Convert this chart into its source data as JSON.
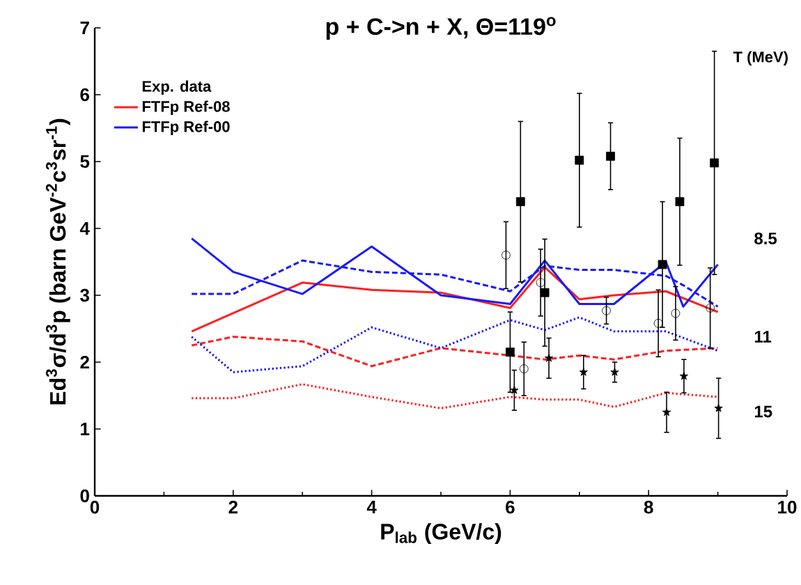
{
  "chart_data": {
    "type": "line",
    "title": "p + C->n + X, Θ=119$^{o}$",
    "xlabel": "P$_{lab}$ (GeV/c)",
    "ylabel": "Ed$^{3}$σ/d$^{3}$p (barn GeV$^{-2}$c$^{3}$sr$^{-1}$)",
    "legend_title": "Exp. data",
    "xlim": [
      0,
      10
    ],
    "ylim": [
      0,
      7
    ],
    "xticks": [
      0,
      2,
      4,
      6,
      8,
      10
    ],
    "yticks": [
      0,
      1,
      2,
      3,
      4,
      5,
      6,
      7
    ],
    "grid": false,
    "legend": "top left",
    "annotations": [
      "T (MeV)",
      "8.5",
      "11",
      "15"
    ],
    "series": [
      {
        "name": "FTFp Ref-08",
        "type": "line",
        "color": "#ff2020",
        "line_style": "solid",
        "x": [
          1.4,
          3,
          4,
          5,
          6,
          6.5,
          7,
          7.5,
          8.25,
          9
        ],
        "values": [
          2.46,
          3.19,
          3.08,
          3.04,
          2.81,
          3.42,
          2.94,
          3.0,
          3.06,
          2.75
        ]
      },
      {
        "name": "FTFp Ref-00",
        "type": "line",
        "color": "#1a1aff",
        "line_style": "solid",
        "x": [
          1.4,
          2,
          3,
          4,
          5,
          6,
          6.5,
          7,
          7.5,
          8.25,
          8.5,
          9
        ],
        "values": [
          3.85,
          3.35,
          3.02,
          3.73,
          3.0,
          2.87,
          3.52,
          2.87,
          2.87,
          3.5,
          2.83,
          3.46
        ]
      },
      {
        "type": "line",
        "color": "#ff2020",
        "line_style": "dashed",
        "x": [
          1.4,
          2,
          3,
          4,
          5,
          6,
          6.5,
          7,
          7.5,
          8.25,
          9
        ],
        "values": [
          2.25,
          2.38,
          2.31,
          1.94,
          2.21,
          2.1,
          2.04,
          2.1,
          2.04,
          2.17,
          2.21
        ]
      },
      {
        "type": "line",
        "color": "#1a1aff",
        "line_style": "dashed",
        "x": [
          1.4,
          2,
          3,
          4,
          5,
          6,
          6.5,
          7,
          7.5,
          8.25,
          8.5,
          9
        ],
        "values": [
          3.02,
          3.02,
          3.52,
          3.35,
          3.31,
          3.06,
          3.44,
          3.38,
          3.38,
          3.29,
          3.15,
          2.83
        ]
      },
      {
        "type": "line",
        "color": "#ff2020",
        "line_style": "dotted",
        "x": [
          1.4,
          2,
          3,
          4,
          5,
          6,
          6.5,
          7,
          7.5,
          8.25,
          9
        ],
        "values": [
          1.46,
          1.46,
          1.67,
          1.48,
          1.31,
          1.48,
          1.44,
          1.44,
          1.33,
          1.54,
          1.48
        ]
      },
      {
        "type": "line",
        "color": "#1a1aff",
        "line_style": "dotted",
        "x": [
          1.4,
          2,
          3,
          4,
          5,
          6,
          6.5,
          7,
          7.5,
          8.25,
          9
        ],
        "values": [
          2.38,
          1.85,
          1.94,
          2.52,
          2.21,
          2.63,
          2.48,
          2.67,
          2.46,
          2.46,
          2.17
        ]
      },
      {
        "type": "scatter",
        "color": "#000000",
        "marker": "square",
        "x": [
          6.0,
          6.15,
          6.5,
          7.0,
          7.45,
          8.2,
          8.45,
          8.95
        ],
        "values": [
          2.15,
          4.4,
          3.04,
          5.02,
          5.08,
          3.46,
          4.4,
          4.98
        ],
        "errors": [
          0.6,
          1.2,
          0.8,
          1.0,
          0.5,
          0.94,
          0.95,
          1.67
        ]
      },
      {
        "type": "scatter",
        "color": "#000000",
        "marker": "circle",
        "x": [
          5.94,
          6.2,
          6.44,
          7.39,
          8.14,
          8.39,
          8.89
        ],
        "values": [
          3.6,
          1.9,
          3.19,
          2.77,
          2.58,
          2.73,
          2.81
        ],
        "errors": [
          0.5,
          0.4,
          0.5,
          0.2,
          0.5,
          0.4,
          0.6
        ]
      },
      {
        "type": "scatter",
        "color": "#000000",
        "marker": "star",
        "x": [
          6.06,
          6.56,
          7.06,
          7.51,
          8.26,
          8.51,
          9.01
        ],
        "values": [
          1.58,
          2.06,
          1.85,
          1.85,
          1.25,
          1.79,
          1.31
        ],
        "errors": [
          0.3,
          0.3,
          0.25,
          0.15,
          0.3,
          0.25,
          0.45
        ]
      }
    ]
  }
}
